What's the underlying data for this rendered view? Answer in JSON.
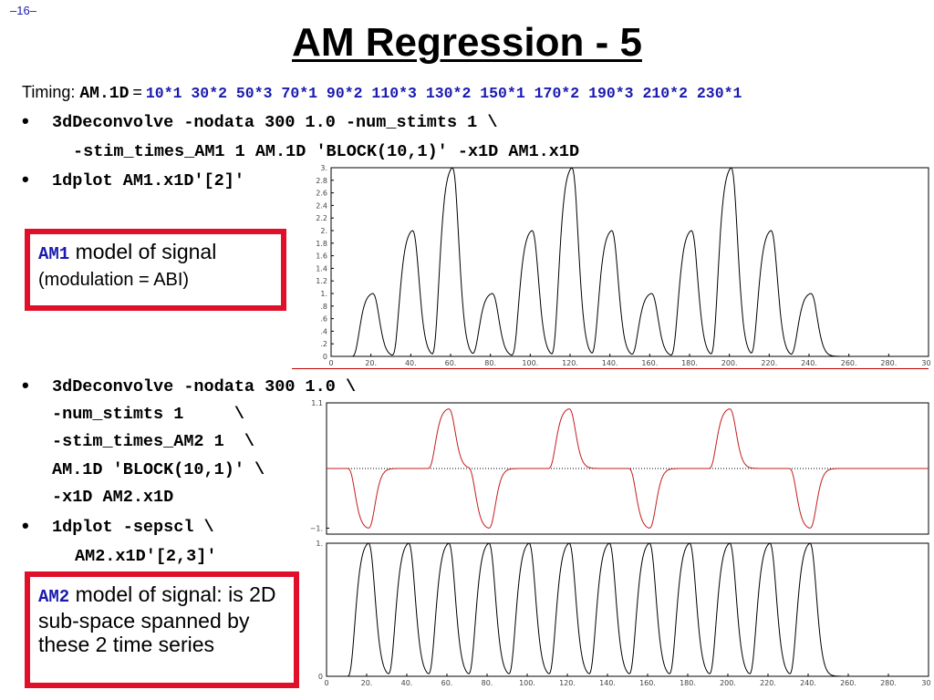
{
  "slide": {
    "number": "–16–",
    "title": "AM Regression - 5"
  },
  "timing": {
    "label": "Timing:",
    "file": "AM.1D",
    "equals": "=",
    "values": "10*1 30*2 50*3 70*1 90*2 110*3 130*2 150*1 170*2 190*3 210*2 230*1"
  },
  "bullets_top": {
    "cmd1_line1": "3dDeconvolve -nodata 300 1.0 -num_stimts 1 \\",
    "cmd1_line2": "-stim_times_AM1 1 AM.1D 'BLOCK(10,1)' -x1D AM1.x1D",
    "cmd2": "1dplot AM1.x1D'[2]'"
  },
  "callout_am1": {
    "keyword": "AM1",
    "text": " model of signal",
    "subtext": "(modulation = ABI)"
  },
  "bullets_bottom": {
    "line1": "3dDeconvolve -nodata 300 1.0 \\",
    "line2": "-num_stimts 1     \\",
    "line3": "-stim_times_AM2 1  \\",
    "line4": "AM.1D 'BLOCK(10,1)' \\",
    "line5": "-x1D AM2.x1D",
    "line6": "1dplot -sepscl \\",
    "line7": "AM2.x1D'[2,3]'"
  },
  "callout_am2": {
    "keyword": "AM2",
    "text": " model of signal: is 2D sub-space spanned by these 2 time series"
  },
  "bullet_symbol": "•",
  "colors": {
    "accent_blue": "#1a1ab0",
    "callout_border": "#e0102a",
    "plot_red": "#c41c1c",
    "plot_black": "#000000"
  },
  "chart_data": [
    {
      "type": "line",
      "title": "",
      "xlabel": "",
      "ylabel": "",
      "xlim": [
        0,
        300
      ],
      "ylim": [
        0,
        3
      ],
      "x_ticks": [
        "0",
        "20.",
        "40.",
        "60.",
        "80.",
        "100.",
        "120.",
        "140.",
        "160.",
        "180.",
        "200.",
        "220.",
        "240.",
        "260.",
        "280.",
        "300"
      ],
      "y_ticks": [
        "0",
        ".2",
        ".4",
        ".6",
        ".8",
        "1.",
        "1.2",
        "1.4",
        "1.6",
        "1.8",
        "2.",
        "2.2",
        "2.4",
        "2.6",
        "2.8",
        "3."
      ],
      "series": [
        {
          "onsets": [
            10,
            30,
            50,
            70,
            90,
            110,
            130,
            150,
            170,
            190,
            210,
            230
          ],
          "peaks": [
            1,
            2,
            3,
            1,
            2,
            3,
            2,
            1,
            2,
            3,
            2,
            1
          ],
          "color": "#000000"
        }
      ],
      "grid": false
    },
    {
      "type": "line",
      "title": "",
      "xlabel": "",
      "ylabel": "",
      "xlim": [
        0,
        300
      ],
      "ylim": [
        -1.1,
        1.1
      ],
      "y_ticks": [
        "1.1",
        "−1."
      ],
      "series": [
        {
          "onsets": [
            10,
            30,
            50,
            70,
            90,
            110,
            130,
            150,
            170,
            190,
            210,
            230
          ],
          "peaks": [
            -1,
            0,
            1,
            -1,
            0,
            1,
            0,
            -1,
            0,
            1,
            0,
            -1
          ],
          "color": "#c41c1c"
        }
      ],
      "zero_line": true,
      "grid": false
    },
    {
      "type": "line",
      "title": "",
      "xlabel": "",
      "ylabel": "",
      "xlim": [
        0,
        300
      ],
      "ylim": [
        0,
        1
      ],
      "x_ticks": [
        "0",
        "20.",
        "40.",
        "60.",
        "80.",
        "100.",
        "120.",
        "140.",
        "160.",
        "180.",
        "200.",
        "220.",
        "240.",
        "260.",
        "280.",
        "300"
      ],
      "y_ticks": [
        "1.",
        "0"
      ],
      "series": [
        {
          "onsets": [
            10,
            30,
            50,
            70,
            90,
            110,
            130,
            150,
            170,
            190,
            210,
            230
          ],
          "peaks": [
            1,
            1,
            1,
            1,
            1,
            1,
            1,
            1,
            1,
            1,
            1,
            1
          ],
          "color": "#000000"
        }
      ],
      "grid": false
    }
  ]
}
